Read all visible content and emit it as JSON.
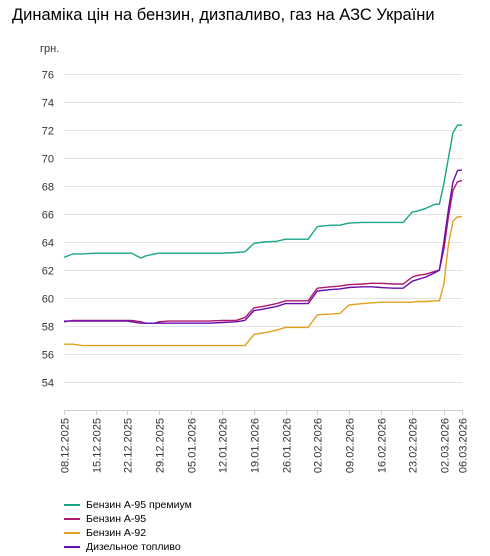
{
  "title": "Динаміка цін на бензин, дизпаливо, газ на АЗС України",
  "chart_data": {
    "type": "line",
    "title": "Динаміка цін на бензин, дизпаливо, газ на АЗС України",
    "ylabel": "грн.",
    "ylim": [
      52,
      77
    ],
    "yticks": [
      54,
      56,
      58,
      60,
      62,
      64,
      66,
      68,
      70,
      72,
      74,
      76
    ],
    "grid": "horizontal",
    "legend_position": "bottom-left",
    "x": [
      "2025-12-08",
      "2025-12-10",
      "2025-12-12",
      "2025-12-15",
      "2025-12-17",
      "2025-12-20",
      "2025-12-22",
      "2025-12-23",
      "2025-12-25",
      "2025-12-26",
      "2025-12-28",
      "2025-12-29",
      "2025-12-31",
      "2026-01-05",
      "2026-01-09",
      "2026-01-12",
      "2026-01-15",
      "2026-01-17",
      "2026-01-19",
      "2026-01-21",
      "2026-01-24",
      "2026-01-26",
      "2026-01-29",
      "2026-01-31",
      "2026-02-02",
      "2026-02-05",
      "2026-02-07",
      "2026-02-09",
      "2026-02-12",
      "2026-02-14",
      "2026-02-16",
      "2026-02-19",
      "2026-02-21",
      "2026-02-23",
      "2026-02-24",
      "2026-02-26",
      "2026-02-28",
      "2026-03-01",
      "2026-03-02",
      "2026-03-03",
      "2026-03-04",
      "2026-03-05",
      "2026-03-06"
    ],
    "xticks": [
      "08.12.2025",
      "15.12.2025",
      "22.12.2025",
      "29.12.2025",
      "05.01.2026",
      "12.01.2026",
      "19.01.2026",
      "26.01.2026",
      "02.02.2026",
      "09.02.2026",
      "16.02.2026",
      "23.02.2026",
      "02.03.2026",
      "06.03.2026"
    ],
    "series": [
      {
        "name": "Бензин А-95 премиум",
        "color": "#1aa488",
        "values": [
          62.9,
          63.15,
          63.15,
          63.2,
          63.2,
          63.2,
          63.2,
          63.2,
          62.85,
          63.0,
          63.15,
          63.2,
          63.2,
          63.2,
          63.2,
          63.2,
          63.25,
          63.3,
          63.9,
          64.0,
          64.05,
          64.2,
          64.2,
          64.2,
          65.1,
          65.2,
          65.2,
          65.35,
          65.4,
          65.4,
          65.4,
          65.4,
          65.4,
          66.15,
          66.2,
          66.4,
          66.7,
          66.7,
          68.2,
          70.0,
          71.8,
          72.35,
          72.35
        ]
      },
      {
        "name": "Бензин А-95",
        "color": "#b0176e",
        "values": [
          58.3,
          58.4,
          58.4,
          58.4,
          58.4,
          58.4,
          58.4,
          58.4,
          58.3,
          58.2,
          58.2,
          58.3,
          58.35,
          58.35,
          58.35,
          58.4,
          58.4,
          58.6,
          59.3,
          59.4,
          59.6,
          59.8,
          59.8,
          59.8,
          60.7,
          60.8,
          60.85,
          60.95,
          61.0,
          61.05,
          61.05,
          61.0,
          61.0,
          61.5,
          61.6,
          61.7,
          61.9,
          62.0,
          63.5,
          65.8,
          67.7,
          68.3,
          68.4
        ]
      },
      {
        "name": "Бензин А-92",
        "color": "#e0a020",
        "values": [
          56.7,
          56.7,
          56.6,
          56.6,
          56.6,
          56.6,
          56.6,
          56.6,
          56.6,
          56.6,
          56.6,
          56.6,
          56.6,
          56.6,
          56.6,
          56.6,
          56.6,
          56.6,
          57.4,
          57.5,
          57.7,
          57.9,
          57.9,
          57.9,
          58.8,
          58.85,
          58.9,
          59.5,
          59.6,
          59.65,
          59.7,
          59.7,
          59.7,
          59.7,
          59.75,
          59.75,
          59.8,
          59.8,
          61.0,
          63.8,
          65.5,
          65.8,
          65.8
        ]
      },
      {
        "name": "Дизельное топливо",
        "color": "#6a0dad",
        "values": [
          58.35,
          58.35,
          58.35,
          58.35,
          58.35,
          58.35,
          58.35,
          58.3,
          58.2,
          58.2,
          58.2,
          58.2,
          58.2,
          58.2,
          58.2,
          58.25,
          58.3,
          58.4,
          59.1,
          59.2,
          59.4,
          59.6,
          59.6,
          59.6,
          60.5,
          60.6,
          60.65,
          60.75,
          60.8,
          60.8,
          60.75,
          60.7,
          60.7,
          61.2,
          61.3,
          61.5,
          61.8,
          62.0,
          64.0,
          66.3,
          68.3,
          69.1,
          69.15
        ]
      }
    ]
  }
}
